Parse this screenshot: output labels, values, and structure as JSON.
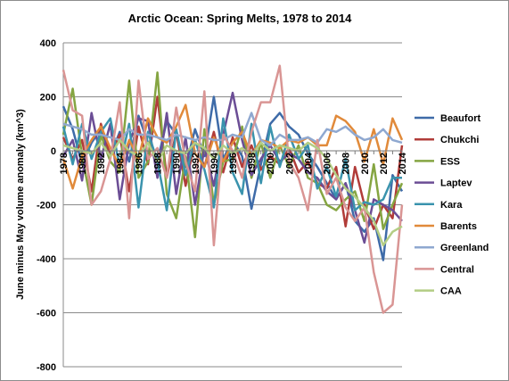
{
  "chart_data": {
    "type": "line",
    "title": "Arctic Ocean: Spring Melts, 1978  to 2014",
    "ylabel": "June minus May volume anomaly  (km^3)",
    "xlabel": "",
    "ylim": [
      -800,
      400
    ],
    "yticks": [
      400,
      200,
      0,
      -200,
      -400,
      -600,
      -800
    ],
    "xtick_labels": [
      "1978",
      "1980",
      "1982",
      "1984",
      "1986",
      "1988",
      "1990",
      "1992",
      "1994",
      "1996",
      "1998",
      "2000",
      "2002",
      "2004",
      "2006",
      "2008",
      "2010",
      "2012",
      "2014"
    ],
    "legend_position": "right",
    "x": [
      1978,
      1979,
      1980,
      1981,
      1982,
      1983,
      1984,
      1985,
      1986,
      1987,
      1988,
      1989,
      1990,
      1991,
      1992,
      1993,
      1994,
      1995,
      1996,
      1997,
      1998,
      1999,
      2000,
      2001,
      2002,
      2003,
      2004,
      2005,
      2006,
      2007,
      2008,
      2009,
      2010,
      2011,
      2012,
      2013,
      2014
    ],
    "series": [
      {
        "name": "Beaufort",
        "color": "#3e6ba8",
        "values": [
          165,
          80,
          -50,
          30,
          80,
          -20,
          70,
          -40,
          130,
          30,
          -40,
          110,
          60,
          -60,
          80,
          -20,
          200,
          -30,
          40,
          -20,
          -215,
          -50,
          100,
          140,
          90,
          60,
          -10,
          -60,
          -120,
          -180,
          -120,
          -260,
          -300,
          -250,
          -405,
          -90,
          -150
        ]
      },
      {
        "name": "Chukchi",
        "color": "#b13c39",
        "values": [
          50,
          -30,
          40,
          -150,
          100,
          -20,
          60,
          -150,
          90,
          -50,
          200,
          -100,
          70,
          -130,
          40,
          -60,
          70,
          -80,
          50,
          -60,
          20,
          -70,
          -20,
          -50,
          10,
          -80,
          -40,
          -120,
          -140,
          -60,
          -280,
          -60,
          -200,
          -290,
          -200,
          -250,
          20
        ]
      },
      {
        "name": "ESS",
        "color": "#85a542",
        "values": [
          60,
          230,
          -20,
          -200,
          60,
          -40,
          -80,
          260,
          -100,
          -40,
          290,
          -160,
          -250,
          -20,
          -320,
          80,
          -200,
          -40,
          -30,
          90,
          -100,
          30,
          -100,
          20,
          -60,
          20,
          -100,
          -120,
          -200,
          -220,
          -180,
          -150,
          -260,
          -50,
          -290,
          -200,
          -120
        ]
      },
      {
        "name": "Laptev",
        "color": "#6b4d95",
        "values": [
          -20,
          40,
          -110,
          140,
          -30,
          100,
          -180,
          30,
          120,
          110,
          -100,
          140,
          -160,
          50,
          -200,
          10,
          -130,
          60,
          215,
          40,
          -90,
          -30,
          20,
          -40,
          -10,
          -30,
          -80,
          -100,
          -150,
          -180,
          -120,
          -220,
          -340,
          -180,
          -200,
          -220,
          -260
        ]
      },
      {
        "name": "Kara",
        "color": "#3a93ad",
        "values": [
          90,
          -50,
          100,
          -30,
          70,
          120,
          -60,
          100,
          -210,
          70,
          -40,
          -220,
          80,
          -90,
          40,
          -70,
          -210,
          120,
          -80,
          -160,
          100,
          -120,
          90,
          -60,
          60,
          -30,
          20,
          -140,
          -60,
          -170,
          -30,
          -220,
          -190,
          -200,
          -180,
          -100,
          -100
        ]
      },
      {
        "name": "Barents",
        "color": "#e18a3a",
        "values": [
          -30,
          -140,
          -20,
          40,
          90,
          10,
          -60,
          40,
          -30,
          120,
          50,
          30,
          90,
          170,
          -10,
          -60,
          50,
          -40,
          30,
          70,
          -20,
          40,
          30,
          10,
          40,
          30,
          50,
          20,
          20,
          130,
          110,
          70,
          -40,
          80,
          -50,
          120,
          40
        ]
      },
      {
        "name": "Greenland",
        "color": "#8fa8d0",
        "values": [
          100,
          90,
          80,
          60,
          60,
          50,
          40,
          80,
          60,
          60,
          50,
          40,
          60,
          50,
          40,
          50,
          40,
          40,
          60,
          50,
          140,
          40,
          20,
          60,
          40,
          40,
          50,
          30,
          80,
          70,
          90,
          60,
          40,
          50,
          80,
          40,
          30
        ]
      },
      {
        "name": "Central",
        "color": "#d99594",
        "values": [
          300,
          150,
          130,
          -200,
          -150,
          -30,
          180,
          -250,
          260,
          -30,
          10,
          -100,
          160,
          -40,
          -150,
          220,
          -350,
          60,
          0,
          -100,
          70,
          180,
          180,
          315,
          -40,
          -100,
          -220,
          40,
          -160,
          -100,
          -210,
          -260,
          -210,
          -450,
          -600,
          -570,
          -200
        ]
      },
      {
        "name": "CAA",
        "color": "#b3cd84",
        "values": [
          20,
          10,
          0,
          -10,
          30,
          -20,
          40,
          0,
          -20,
          30,
          -40,
          20,
          0,
          -10,
          30,
          10,
          -30,
          20,
          -10,
          10,
          -20,
          30,
          0,
          20,
          10,
          0,
          30,
          10,
          -30,
          -90,
          -140,
          -170,
          -210,
          -260,
          -350,
          -300,
          -280
        ]
      }
    ]
  }
}
